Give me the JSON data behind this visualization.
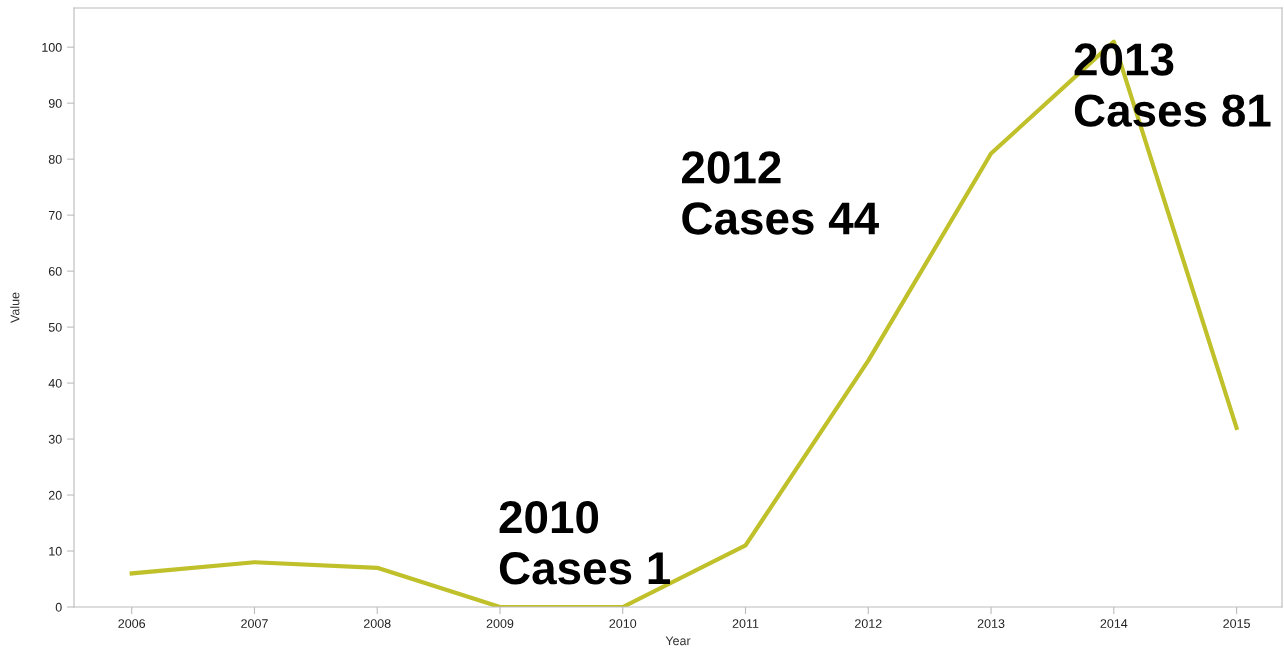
{
  "chart_data": {
    "type": "line",
    "xlabel": "Year",
    "ylabel": "Value",
    "x": [
      2006,
      2007,
      2008,
      2009,
      2010,
      2011,
      2012,
      2013,
      2014,
      2015
    ],
    "series": [
      {
        "color": "#bfc02a",
        "values": [
          6,
          8,
          7,
          0,
          0,
          11,
          44,
          81,
          101,
          32
        ]
      }
    ],
    "xlim": [
      2005.53,
      2015.37
    ],
    "xticks": [
      2006,
      2007,
      2008,
      2009,
      2010,
      2011,
      2012,
      2013,
      2014,
      2015
    ],
    "ylim": [
      0,
      107
    ],
    "yticks": [
      0,
      10,
      20,
      30,
      40,
      50,
      60,
      70,
      80,
      90,
      100
    ],
    "grid": false,
    "marker": "none",
    "line_style": "solid",
    "annotations": [
      "2010\nCases 1",
      "2012\nCases 44",
      "2013\nCases 81"
    ]
  }
}
